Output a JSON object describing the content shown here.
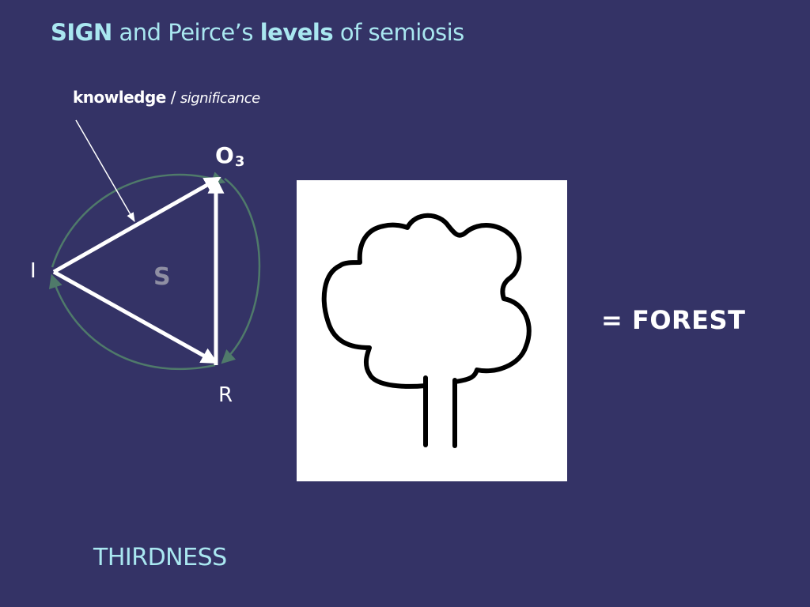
{
  "slide": {
    "title": {
      "part1": "SIGN",
      "part2": " and Peirce’s ",
      "part3": "levels",
      "part4": " of semiosis"
    },
    "annotation": {
      "bold": "knowledge",
      "separator": " / ",
      "italic": "significance"
    },
    "nodes": {
      "object": "O",
      "object_subscript": "3",
      "interpretant": "I",
      "representamen": "R",
      "sign": "S"
    },
    "equation": "= FOREST",
    "footer": "THIRDNESS"
  },
  "colors": {
    "background": "#343366",
    "title_text": "#a9e7f0",
    "arrow": "#ffffff",
    "circle": "#4f7a6a",
    "sign_letter": "#8f8fa3"
  },
  "icons": {
    "picture": "tree-drawing"
  }
}
